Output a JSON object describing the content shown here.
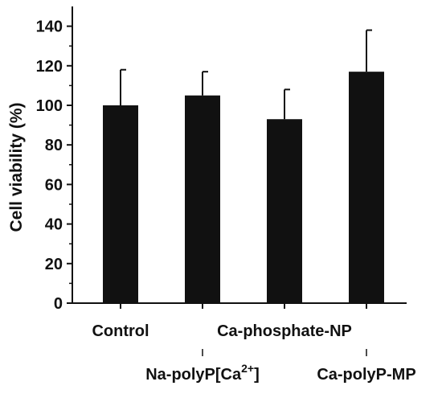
{
  "chart_data": {
    "type": "bar",
    "categories": [
      "Control",
      "Na-polyP[Ca2+]",
      "Ca-phosphate-NP",
      "Ca-polyP-MP"
    ],
    "category_labels": [
      {
        "text": "Control",
        "sup": ""
      },
      {
        "text": "Na-polyP[Ca",
        "sup": "2+",
        "suffix": "]"
      },
      {
        "text": "Ca-phosphate-NP",
        "sup": ""
      },
      {
        "text": "Ca-polyP-MP",
        "sup": ""
      }
    ],
    "values": [
      100,
      105,
      93,
      117
    ],
    "errors": [
      18,
      12,
      15,
      21
    ],
    "title": "",
    "xlabel": "",
    "ylabel": "Cell viability (%)",
    "ylim": [
      0,
      150
    ],
    "yticks": [
      0,
      20,
      40,
      60,
      80,
      100,
      120,
      140
    ],
    "grid": false,
    "legend": "none",
    "bar_color": "#111111"
  }
}
